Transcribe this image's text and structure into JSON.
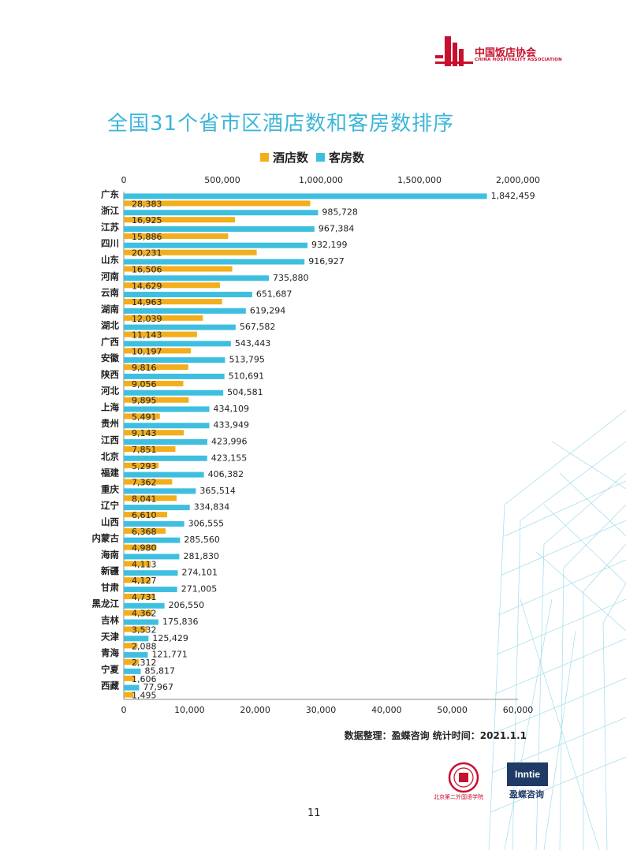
{
  "header": {
    "logo_cn": "中国饭店协会",
    "logo_en": "CHINA HOSPITALITY ASSOCIATION"
  },
  "title": "全国31个省市区酒店数和客房数排序",
  "colors": {
    "hotels": "#f2ae1b",
    "rooms": "#3fbfe0",
    "title": "#3bb6d9"
  },
  "chart_data": {
    "type": "bar",
    "orientation": "horizontal",
    "categories": [
      "广东",
      "浙江",
      "江苏",
      "四川",
      "山东",
      "河南",
      "云南",
      "湖南",
      "湖北",
      "广西",
      "安徽",
      "陕西",
      "河北",
      "上海",
      "贵州",
      "江西",
      "北京",
      "福建",
      "重庆",
      "辽宁",
      "山西",
      "内蒙古",
      "海南",
      "新疆",
      "甘肃",
      "黑龙江",
      "吉林",
      "天津",
      "青海",
      "宁夏",
      "西藏"
    ],
    "series": [
      {
        "name": "酒店数",
        "axis": "bottom",
        "values": [
          28383,
          16925,
          15886,
          20231,
          16506,
          14629,
          14963,
          12039,
          11143,
          10197,
          9816,
          9056,
          9895,
          5491,
          9143,
          7851,
          5293,
          7362,
          8041,
          6610,
          6368,
          4980,
          4113,
          4127,
          4731,
          4362,
          3532,
          2088,
          2312,
          1606,
          1495
        ],
        "labels": [
          "28,383",
          "16,925",
          "15,886",
          "20,231",
          "16,506",
          "14,629",
          "14,963",
          "12,039",
          "11,143",
          "10,197",
          "9,816",
          "9,056",
          "9,895",
          "5,491",
          "9,143",
          "7,851",
          "5,293",
          "7,362",
          "8,041",
          "6,610",
          "6,368",
          "4,980",
          "4,113",
          "4,127",
          "4,731",
          "4,362",
          "3,532",
          "2,088",
          "2,312",
          "1,606",
          "1,495"
        ]
      },
      {
        "name": "客房数",
        "axis": "top",
        "values": [
          1842459,
          985728,
          967384,
          932199,
          916927,
          735880,
          651687,
          619294,
          567582,
          543443,
          513795,
          510691,
          504581,
          434109,
          433949,
          423996,
          423155,
          406382,
          365514,
          334834,
          306555,
          285560,
          281830,
          274101,
          271005,
          206550,
          175836,
          125429,
          121771,
          85817,
          77967
        ],
        "labels": [
          "1,842,459",
          "985,728",
          "967,384",
          "932,199",
          "916,927",
          "735,880",
          "651,687",
          "619,294",
          "567,582",
          "543,443",
          "513,795",
          "510,691",
          "504,581",
          "434,109",
          "433,949",
          "423,996",
          "423,155",
          "406,382",
          "365,514",
          "334,834",
          "306,555",
          "285,560",
          "281,830",
          "274,101",
          "271,005",
          "206,550",
          "175,836",
          "125,429",
          "121,771",
          "85,817",
          "77,967"
        ]
      }
    ],
    "x_top": {
      "range": [
        0,
        2000000
      ],
      "ticks": [
        "0",
        "500,000",
        "1,000,000",
        "1,500,000",
        "2,000,000"
      ]
    },
    "x_bottom": {
      "range": [
        0,
        60000
      ],
      "ticks": [
        "0",
        "10,000",
        "20,000",
        "30,000",
        "40,000",
        "50,000",
        "60,000"
      ]
    },
    "legend_position": "top",
    "grid": false
  },
  "source_note": "数据整理：盈蝶咨询  统计时间：2021.1.1",
  "footer": {
    "page_number": "11",
    "logo_right_en": "Inntie",
    "logo_right_cn": "盈蝶咨询",
    "logo_left_cn": "北京第二外国语学院"
  }
}
